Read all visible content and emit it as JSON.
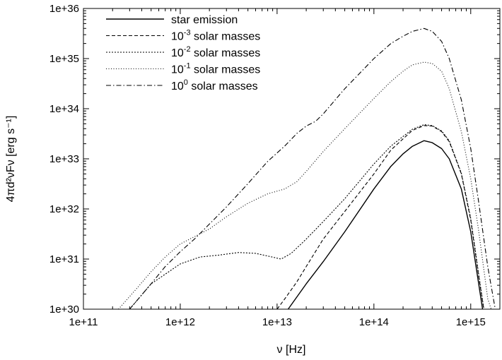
{
  "chart_data": {
    "type": "line",
    "xlabel": "ν [Hz]",
    "ylabel": "4πd²νFν [erg s⁻¹]",
    "xscale": "log",
    "yscale": "log",
    "xlim": [
      100000000000.0,
      2000000000000000.0
    ],
    "ylim": [
      1e+30,
      1e+36
    ],
    "xticks": [
      {
        "value": 100000000000.0,
        "label": "1e+11"
      },
      {
        "value": 1000000000000.0,
        "label": "1e+12"
      },
      {
        "value": 10000000000000.0,
        "label": "1e+13"
      },
      {
        "value": 100000000000000.0,
        "label": "1e+14"
      },
      {
        "value": 1000000000000000.0,
        "label": "1e+15"
      }
    ],
    "yticks": [
      {
        "value": 1e+30,
        "label": "1e+30"
      },
      {
        "value": 1e+31,
        "label": "1e+31"
      },
      {
        "value": 1e+32,
        "label": "1e+32"
      },
      {
        "value": 1e+33,
        "label": "1e+33"
      },
      {
        "value": 1e+34,
        "label": "1e+34"
      },
      {
        "value": 1e+35,
        "label": "1e+35"
      },
      {
        "value": 1e+36,
        "label": "1e+36"
      }
    ],
    "grid": false,
    "legend_position": "top-left",
    "series": [
      {
        "name": "star emission",
        "legend_base": "star emission",
        "legend_exp": "",
        "legend_rest": "",
        "dash": "solid",
        "x": [
          13000000000000.0,
          20000000000000.0,
          30000000000000.0,
          50000000000000.0,
          100000000000000.0,
          150000000000000.0,
          200000000000000.0,
          250000000000000.0,
          330000000000000.0,
          400000000000000.0,
          500000000000000.0,
          600000000000000.0,
          800000000000000.0,
          1000000000000000.0,
          1200000000000000.0,
          1400000000000000.0
        ],
        "y": [
          1e+30,
          3.2e+30,
          8.9e+30,
          3.5e+31,
          2.5e+32,
          7.1e+32,
          1.26e+33,
          1.78e+33,
          2.3e+33,
          2.1e+33,
          1.6e+33,
          1e+33,
          2.5e+32,
          3.5e+31,
          3.5e+30,
          5e+29
        ]
      },
      {
        "name": "10-3 solar masses",
        "legend_base": "10",
        "legend_exp": "-3",
        "legend_rest": " solar masses",
        "dash": "dashed",
        "x": [
          10000000000000.0,
          12000000000000.0,
          16000000000000.0,
          20000000000000.0,
          30000000000000.0,
          50000000000000.0,
          100000000000000.0,
          150000000000000.0,
          200000000000000.0,
          250000000000000.0,
          330000000000000.0,
          400000000000000.0,
          500000000000000.0,
          600000000000000.0,
          800000000000000.0,
          1000000000000000.0,
          1200000000000000.0,
          1500000000000000.0
        ],
        "y": [
          1e+30,
          1.6e+30,
          3.5e+30,
          7.1e+30,
          2.5e+31,
          8.9e+31,
          5e+32,
          1.5e+33,
          2.5e+33,
          3.7e+33,
          4.6e+33,
          4.5e+33,
          3.5e+33,
          2.2e+33,
          5e+32,
          6e+31,
          5e+30,
          3e+29
        ]
      },
      {
        "name": "10-2 solar masses",
        "legend_base": "10",
        "legend_exp": "-2",
        "legend_rest": " solar masses",
        "dash": "dotted-fine",
        "x": [
          300000000000.0,
          500000000000.0,
          1000000000000.0,
          1600000000000.0,
          2500000000000.0,
          4000000000000.0,
          6000000000000.0,
          8000000000000.0,
          11000000000000.0,
          14000000000000.0,
          20000000000000.0,
          30000000000000.0,
          50000000000000.0,
          100000000000000.0,
          150000000000000.0,
          200000000000000.0,
          250000000000000.0,
          330000000000000.0,
          400000000000000.0,
          500000000000000.0,
          600000000000000.0,
          800000000000000.0,
          1000000000000000.0,
          1200000000000000.0,
          1500000000000000.0
        ],
        "y": [
          1e+30,
          3.2e+30,
          8e+30,
          1.1e+31,
          1.2e+31,
          1.35e+31,
          1.3e+31,
          1.15e+31,
          1e+31,
          1.3e+31,
          2.5e+31,
          5.6e+31,
          1.6e+32,
          7.9e+32,
          1.8e+33,
          2.8e+33,
          3.9e+33,
          4.8e+33,
          4.6e+33,
          3.6e+33,
          2.3e+33,
          5.2e+32,
          6.5e+31,
          5.5e+30,
          3e+29
        ]
      },
      {
        "name": "10-1 solar masses",
        "legend_base": "10",
        "legend_exp": "-1",
        "legend_rest": " solar masses",
        "dash": "dotted-sparse",
        "x": [
          230000000000.0,
          350000000000.0,
          500000000000.0,
          700000000000.0,
          1000000000000.0,
          1400000000000.0,
          2000000000000.0,
          3000000000000.0,
          5000000000000.0,
          8000000000000.0,
          12000000000000.0,
          16000000000000.0,
          20000000000000.0,
          30000000000000.0,
          50000000000000.0,
          100000000000000.0,
          150000000000000.0,
          200000000000000.0,
          250000000000000.0,
          330000000000000.0,
          400000000000000.0,
          500000000000000.0,
          600000000000000.0,
          800000000000000.0,
          1000000000000000.0,
          1200000000000000.0,
          1500000000000000.0,
          2000000000000000.0
        ],
        "y": [
          1e+30,
          2.5e+30,
          5.6e+30,
          1.1e+31,
          2e+31,
          2.8e+31,
          4e+31,
          7e+31,
          1.3e+32,
          2e+32,
          2.5e+32,
          3.5e+32,
          5.6e+32,
          1.4e+33,
          4e+33,
          1.6e+34,
          3.5e+34,
          5.6e+34,
          7.5e+34,
          8.5e+34,
          8e+34,
          5.6e+34,
          2.5e+34,
          3.5e+33,
          4e+32,
          4e+31,
          1.6e+30,
          3e+29
        ]
      },
      {
        "name": "100 solar masses",
        "legend_base": "10",
        "legend_exp": "0",
        "legend_rest": " solar masses",
        "dash": "dashdot",
        "x": [
          300000000000.0,
          500000000000.0,
          700000000000.0,
          1000000000000.0,
          1400000000000.0,
          2000000000000.0,
          3000000000000.0,
          5000000000000.0,
          8000000000000.0,
          12000000000000.0,
          16000000000000.0,
          20000000000000.0,
          25000000000000.0,
          30000000000000.0,
          50000000000000.0,
          100000000000000.0,
          150000000000000.0,
          200000000000000.0,
          250000000000000.0,
          330000000000000.0,
          400000000000000.0,
          500000000000000.0,
          600000000000000.0,
          800000000000000.0,
          1000000000000000.0,
          1200000000000000.0,
          1500000000000000.0,
          2000000000000000.0
        ],
        "y": [
          1e+30,
          3.2e+30,
          7.1e+30,
          1.4e+31,
          2.5e+31,
          5e+31,
          1.1e+32,
          3.2e+32,
          8.9e+32,
          1.8e+33,
          3.2e+33,
          4.5e+33,
          5.6e+33,
          7.9e+33,
          2.5e+34,
          1e+35,
          2e+35,
          2.8e+35,
          3.5e+35,
          4e+35,
          3.5e+35,
          2.2e+35,
          1e+35,
          1.5e+34,
          1.6e+33,
          1.5e+32,
          7e+30,
          3e+29
        ]
      }
    ]
  }
}
